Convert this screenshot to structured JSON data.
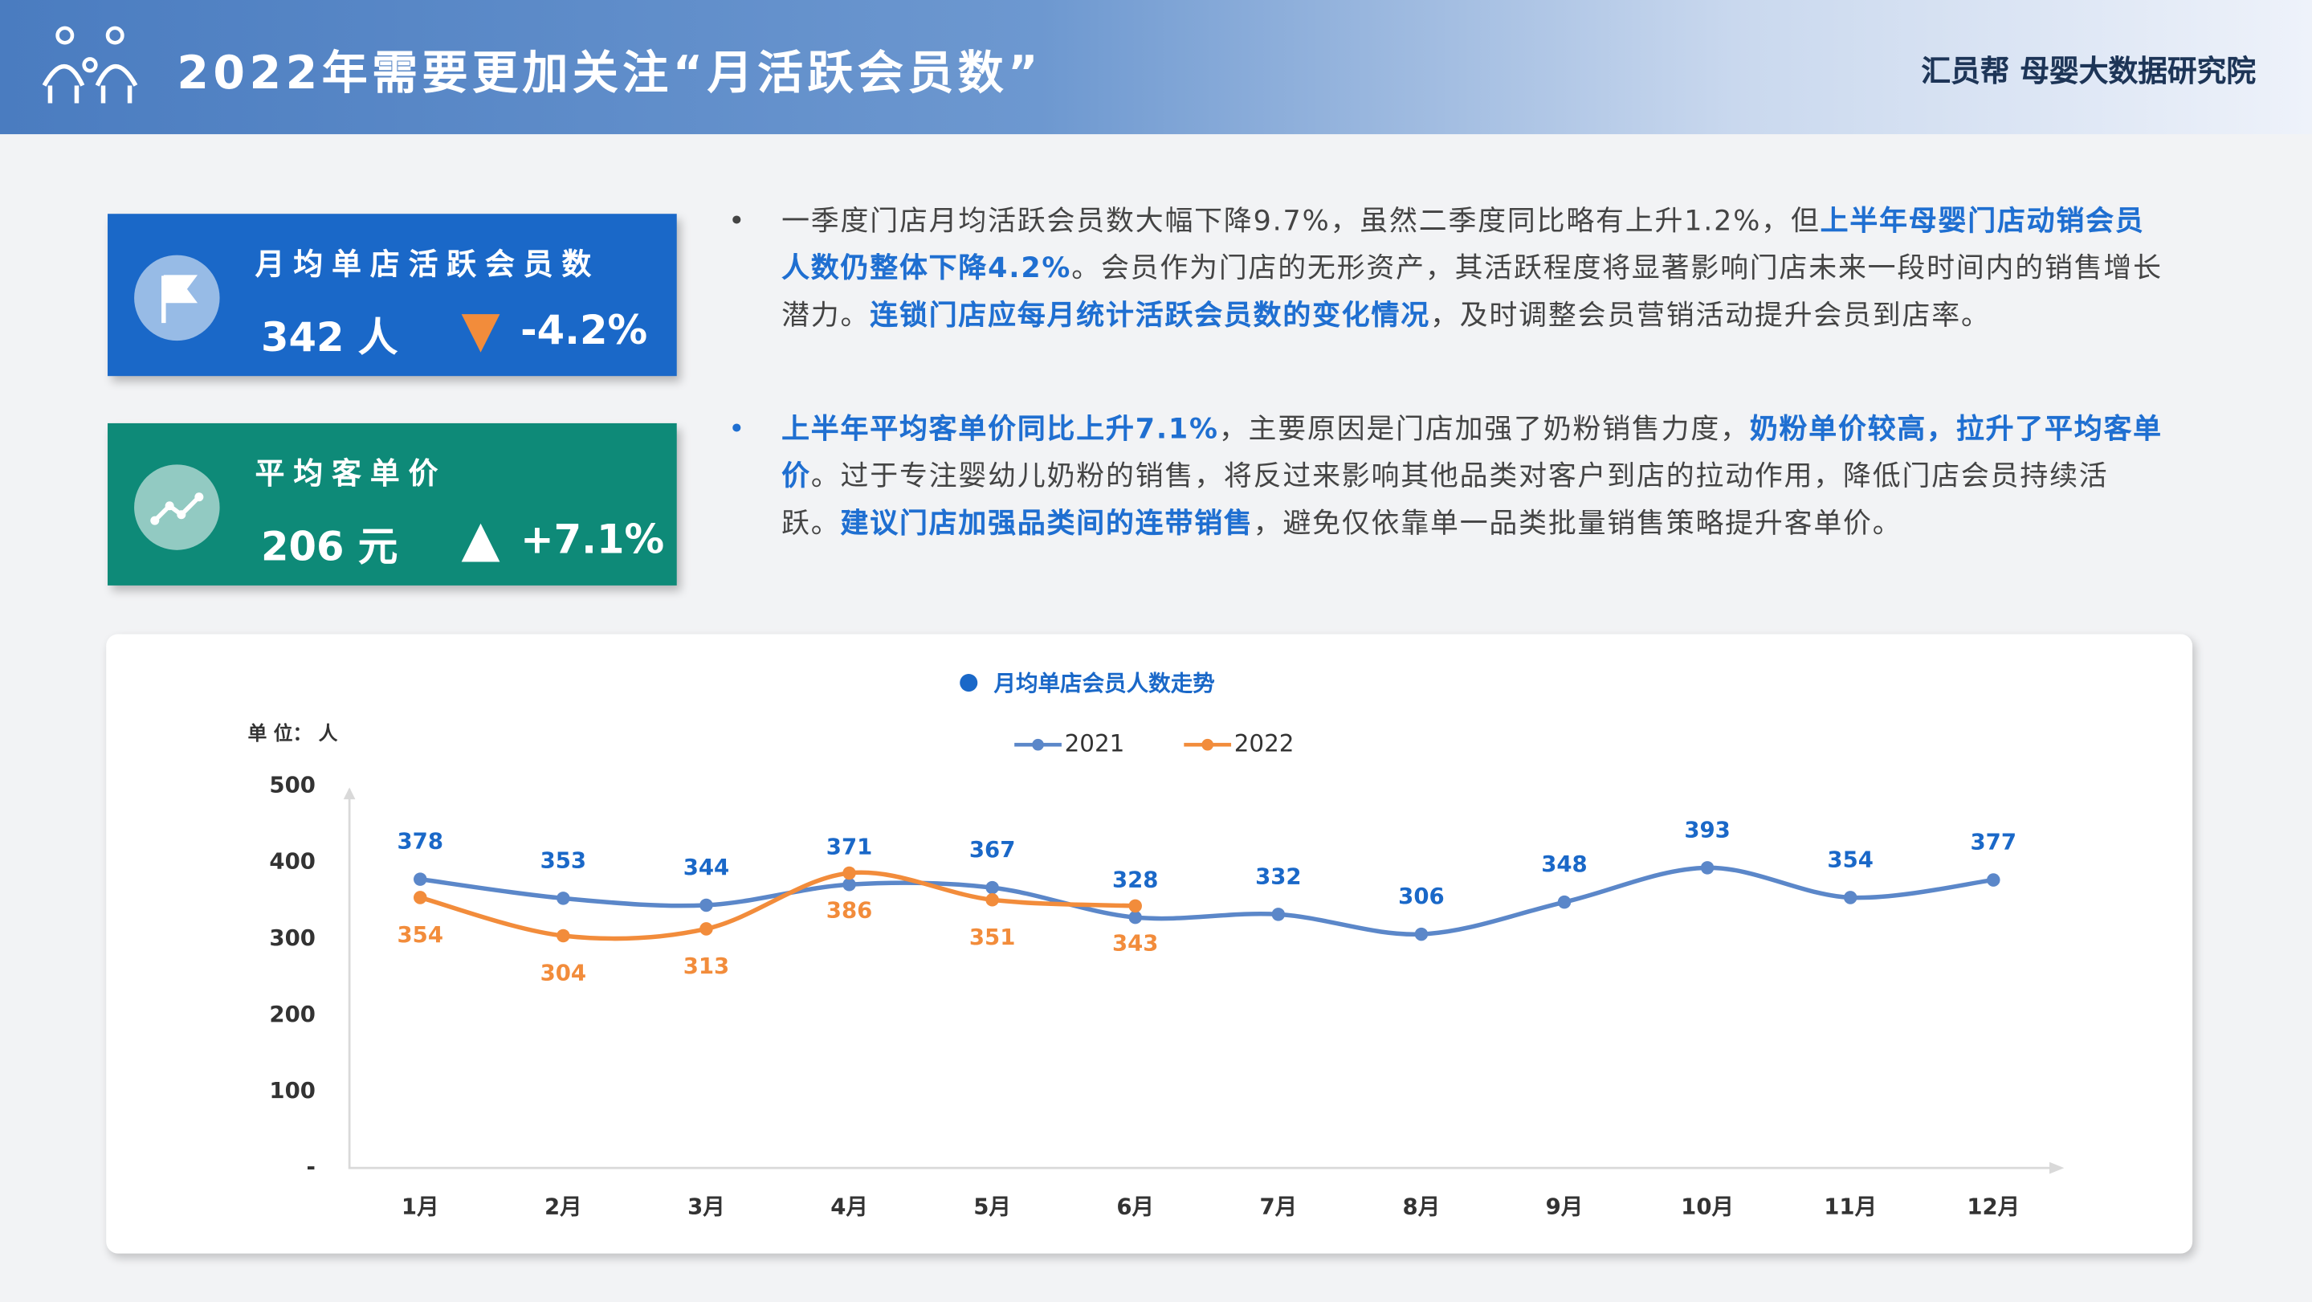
{
  "header": {
    "title": "2022年需要更加关注“月活跃会员数”",
    "brand": "汇员帮 母婴大数据研究院"
  },
  "cards": [
    {
      "label": "月均单店活跃会员数",
      "value": "342 人",
      "change": "-4.2%"
    },
    {
      "label": "平均客单价",
      "value": "206 元",
      "change": "+7.1%"
    }
  ],
  "bullets": [
    {
      "segments": [
        {
          "text": "一季度门店月均活跃会员数大幅下降9.7%，虽然二季度同比略有上升1.2%，但",
          "emphasis": false
        },
        {
          "text": "上半年母婴门店动销会员人数仍整体下降4.2%",
          "emphasis": true
        },
        {
          "text": "。会员作为门店的无形资产，其活跃程度将显著影响门店未来一段时间内的销售增长潜力。",
          "emphasis": false
        },
        {
          "text": "连锁门店应每月统计活跃会员数的变化情况",
          "emphasis": true
        },
        {
          "text": "，及时调整会员营销活动提升会员到店率。",
          "emphasis": false
        }
      ]
    },
    {
      "segments": [
        {
          "text": "上半年平均客单价同比上升7.1%",
          "emphasis": true
        },
        {
          "text": "，主要原因是门店加强了奶粉销售力度，",
          "emphasis": false
        },
        {
          "text": "奶粉单价较高，拉升了平均客单价",
          "emphasis": true
        },
        {
          "text": "。过于专注婴幼儿奶粉的销售，将反过来影响其他品类对客户到店的拉动作用，降低门店会员持续活跃。",
          "emphasis": false
        },
        {
          "text": "建议门店加强品类间的连带销售",
          "emphasis": true
        },
        {
          "text": "，避免仅依靠单一品类批量销售策略提升客单价。",
          "emphasis": false
        }
      ]
    }
  ],
  "chart_data": {
    "type": "line",
    "title": "月均单店会员人数走势",
    "unit_label": "单 位： 人",
    "categories": [
      "1月",
      "2月",
      "3月",
      "4月",
      "5月",
      "6月",
      "7月",
      "8月",
      "9月",
      "10月",
      "11月",
      "12月"
    ],
    "series": [
      {
        "name": "2021",
        "color": "#5b87c9",
        "values": [
          378,
          353,
          344,
          371,
          367,
          328,
          332,
          306,
          348,
          393,
          354,
          377
        ]
      },
      {
        "name": "2022",
        "color": "#f28c3b",
        "values": [
          354,
          304,
          313,
          386,
          351,
          343,
          null,
          null,
          null,
          null,
          null,
          null
        ]
      }
    ],
    "ylim": [
      0,
      500
    ],
    "yticks": [
      {
        "value": 0,
        "label": "-"
      },
      100,
      200,
      300,
      400,
      500
    ]
  }
}
